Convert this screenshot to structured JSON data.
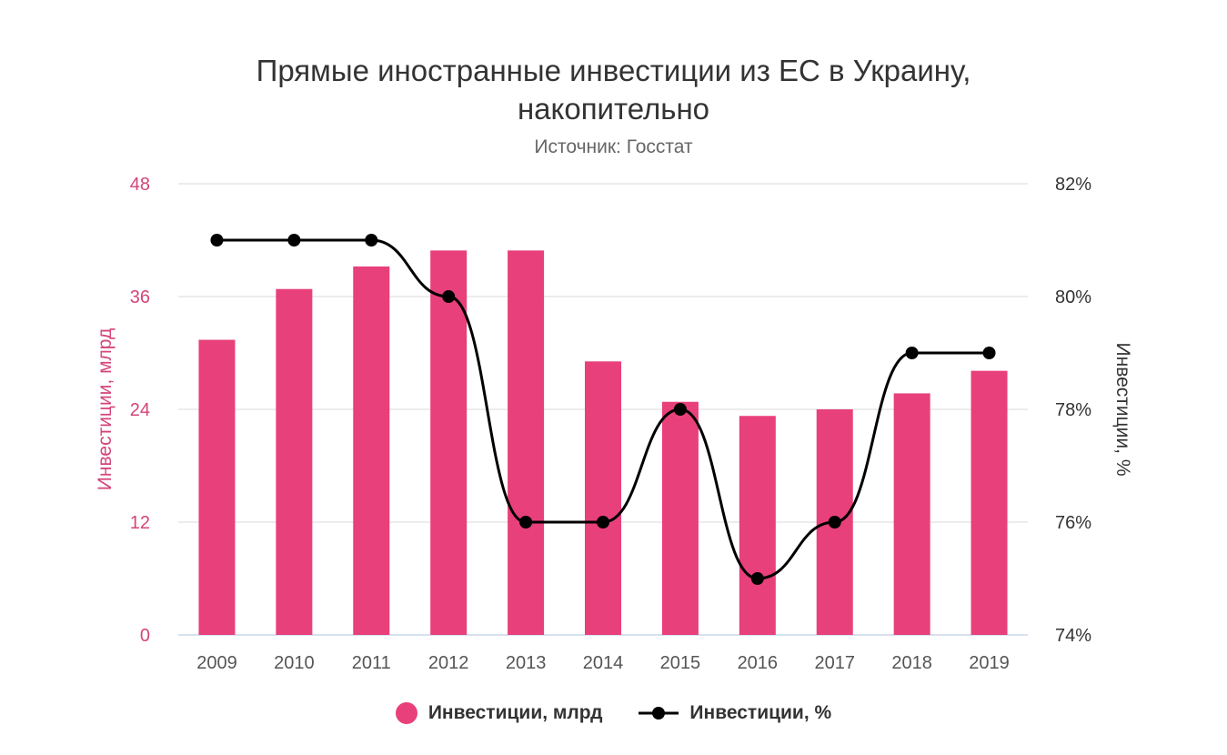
{
  "chart_data": {
    "type": "bar+line",
    "title_line1": "Прямые иностранные инвестиции из ЕС в Украину,",
    "title_line2": "накопительно",
    "subtitle": "Источник: Госстат",
    "categories": [
      "2009",
      "2010",
      "2011",
      "2012",
      "2013",
      "2014",
      "2015",
      "2016",
      "2017",
      "2018",
      "2019"
    ],
    "series": [
      {
        "name": "Инвестиции, млрд",
        "type": "bar",
        "axis": "left",
        "color": "#e8407a",
        "values": [
          31.4,
          36.8,
          39.2,
          40.9,
          40.9,
          29.1,
          24.8,
          23.3,
          24.0,
          25.7,
          28.1
        ]
      },
      {
        "name": "Инвестиции, %",
        "type": "line",
        "axis": "right",
        "color": "#000000",
        "values": [
          81,
          81,
          81,
          80,
          76,
          76,
          78,
          75,
          76,
          79,
          79
        ]
      }
    ],
    "left_axis": {
      "label": "Инвестиции, млрд",
      "ylim": [
        0,
        48
      ],
      "ticks": [
        "0",
        "12",
        "24",
        "36",
        "48"
      ],
      "color": "#d4457a"
    },
    "right_axis": {
      "label": "Инвестиции, %",
      "ylim": [
        74,
        82
      ],
      "ticks": [
        "74%",
        "76%",
        "78%",
        "80%",
        "82%"
      ]
    },
    "grid": true,
    "legend": "bottom-center"
  }
}
